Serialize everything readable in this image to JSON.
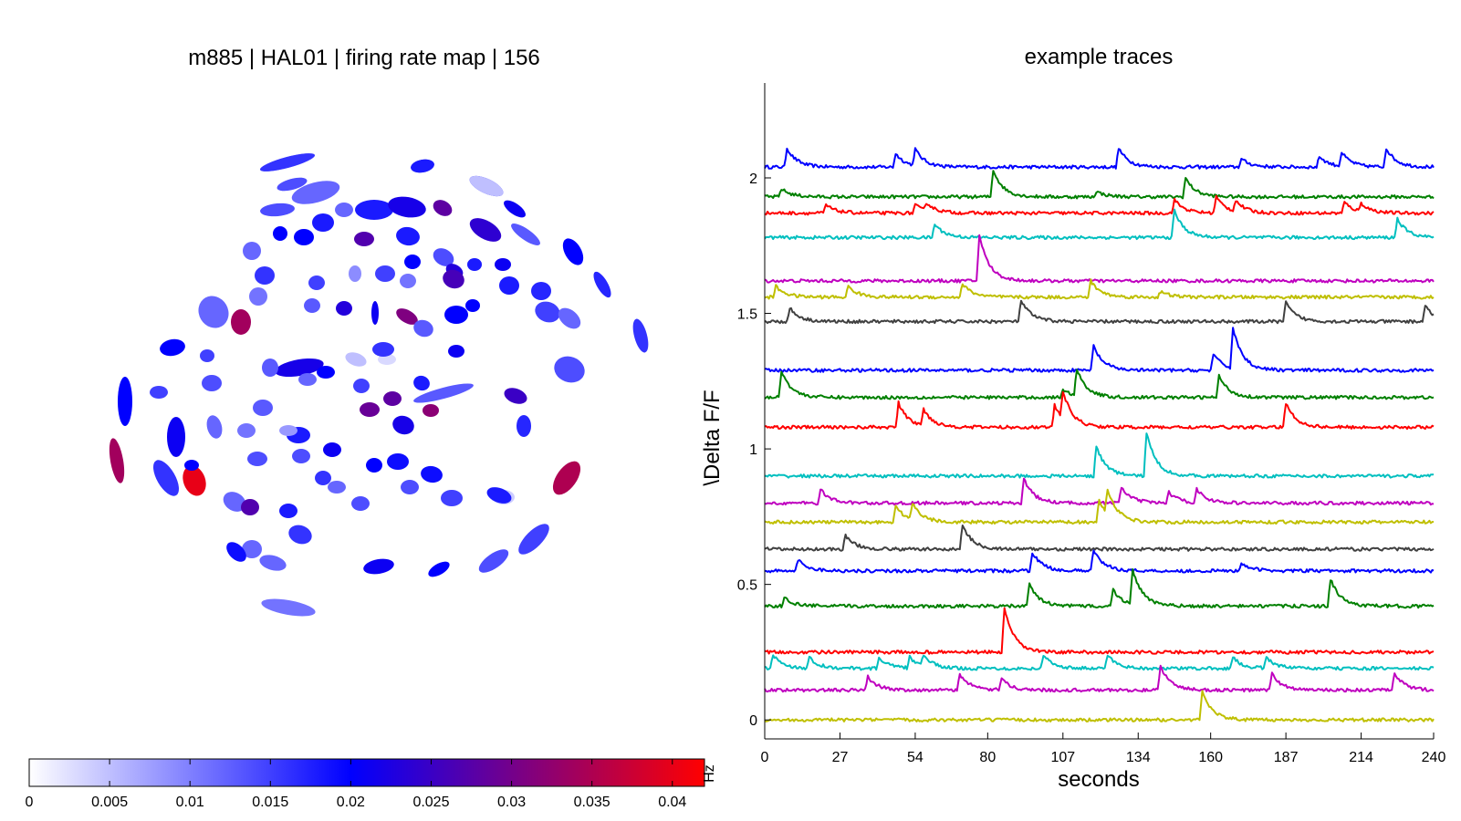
{
  "colors": {
    "colormap": [
      "#ffffff",
      "#0000ff",
      "#ff0000"
    ],
    "trace_cycle": [
      "#0000ff",
      "#008000",
      "#ff0000",
      "#00bfbf",
      "#bf00bf",
      "#bfbf00",
      "#404040"
    ]
  },
  "chart_data": [
    {
      "type": "heatmap",
      "title": "m885 | HAL01 | firing rate map | 156",
      "colorbar": {
        "label": "Hz",
        "range": [
          0,
          0.042
        ],
        "ticks": [
          "0",
          "0.005",
          "0.01",
          "0.015",
          "0.02",
          "0.025",
          "0.03",
          "0.035",
          "0.04"
        ]
      },
      "cells": [
        {
          "value": 0.009
        },
        {
          "value": 0.004
        },
        {
          "value": 0.019
        },
        {
          "value": 0.02
        },
        {
          "value": 0.012
        },
        {
          "value": 0.014
        },
        {
          "value": 0.018
        },
        {
          "value": 0.022
        },
        {
          "value": 0.012
        },
        {
          "value": 0.028
        },
        {
          "value": 0.021
        },
        {
          "value": 0.013
        },
        {
          "value": 0.018
        },
        {
          "value": 0.02
        },
        {
          "value": 0.024
        },
        {
          "value": 0.012
        },
        {
          "value": 0.02
        },
        {
          "value": 0.018
        },
        {
          "value": 0.027
        },
        {
          "value": 0.014
        },
        {
          "value": 0.023
        },
        {
          "value": 0.02
        },
        {
          "value": 0.016
        },
        {
          "value": 0.009
        },
        {
          "value": 0.015
        },
        {
          "value": 0.018
        },
        {
          "value": 0.021
        },
        {
          "value": 0.02
        },
        {
          "value": 0.011
        },
        {
          "value": 0.026
        },
        {
          "value": 0.034
        },
        {
          "value": 0.012
        },
        {
          "value": 0.015
        },
        {
          "value": 0.021
        },
        {
          "value": 0.018
        },
        {
          "value": 0.017
        },
        {
          "value": 0.011
        },
        {
          "value": 0.031
        },
        {
          "value": 0.017
        },
        {
          "value": 0.02
        },
        {
          "value": 0.015
        },
        {
          "value": 0.02
        },
        {
          "value": 0.013
        },
        {
          "value": 0.023
        },
        {
          "value": 0.012
        },
        {
          "value": 0.005
        },
        {
          "value": 0.003
        },
        {
          "value": 0.013
        },
        {
          "value": 0.016
        },
        {
          "value": 0.021
        },
        {
          "value": 0.02
        },
        {
          "value": 0.022
        },
        {
          "value": 0.016
        },
        {
          "value": 0.014
        },
        {
          "value": 0.015
        },
        {
          "value": 0.014
        },
        {
          "value": 0.013
        },
        {
          "value": 0.029
        },
        {
          "value": 0.012
        },
        {
          "value": 0.02
        },
        {
          "value": 0.034
        },
        {
          "value": 0.02
        },
        {
          "value": 0.015
        },
        {
          "value": 0.04
        },
        {
          "value": 0.013
        },
        {
          "value": 0.021
        },
        {
          "value": 0.015
        },
        {
          "value": 0.028
        },
        {
          "value": 0.018
        },
        {
          "value": 0.013
        },
        {
          "value": 0.025
        },
        {
          "value": 0.017
        },
        {
          "value": 0.032
        },
        {
          "value": 0.022
        },
        {
          "value": 0.018
        },
        {
          "value": 0.008
        },
        {
          "value": 0.012
        },
        {
          "value": 0.011
        },
        {
          "value": 0.014
        },
        {
          "value": 0.035
        },
        {
          "value": 0.016
        },
        {
          "value": 0.02
        },
        {
          "value": 0.012
        },
        {
          "value": 0.016
        },
        {
          "value": 0.004
        },
        {
          "value": 0.02
        },
        {
          "value": 0.019
        },
        {
          "value": 0.014
        },
        {
          "value": 0.012
        },
        {
          "value": 0.021
        },
        {
          "value": 0.019
        },
        {
          "value": 0.015
        },
        {
          "value": 0.014
        },
        {
          "value": 0.027
        },
        {
          "value": 0.014
        },
        {
          "value": 0.018
        },
        {
          "value": 0.016
        },
        {
          "value": 0.015
        },
        {
          "value": 0.012
        },
        {
          "value": 0.019
        },
        {
          "value": 0.012
        },
        {
          "value": 0.021
        },
        {
          "value": 0.02
        },
        {
          "value": 0.014
        },
        {
          "value": 0.011
        },
        {
          "value": 0.018
        },
        {
          "value": 0.016
        },
        {
          "value": 0.014
        },
        {
          "value": 0.018
        },
        {
          "value": 0.005
        }
      ]
    },
    {
      "type": "line",
      "title": "example traces",
      "xlabel": "seconds",
      "ylabel": "\\Delta F/F",
      "xlim": [
        0,
        240
      ],
      "ylim": [
        -0.07,
        2.35
      ],
      "xticks": [
        0,
        27,
        54,
        80,
        107,
        134,
        160,
        187,
        214,
        240
      ],
      "yticks": [
        0,
        0.5,
        1,
        1.5,
        2
      ],
      "series": [
        {
          "color": "#0000ff",
          "baseline": 2.04,
          "peaks": [
            [
              8,
              0.07
            ],
            [
              47,
              0.05
            ],
            [
              54,
              0.06
            ],
            [
              127,
              0.07
            ],
            [
              171,
              0.03
            ],
            [
              199,
              0.04
            ],
            [
              207,
              0.05
            ],
            [
              223,
              0.07
            ]
          ]
        },
        {
          "color": "#008000",
          "baseline": 1.93,
          "peaks": [
            [
              6,
              0.03
            ],
            [
              82,
              0.1
            ],
            [
              119,
              0.02
            ],
            [
              151,
              0.07
            ]
          ]
        },
        {
          "color": "#ff0000",
          "baseline": 1.87,
          "peaks": [
            [
              22,
              0.03
            ],
            [
              54,
              0.03
            ],
            [
              58,
              0.03
            ],
            [
              147,
              0.05
            ],
            [
              162,
              0.06
            ],
            [
              169,
              0.04
            ],
            [
              208,
              0.04
            ],
            [
              214,
              0.03
            ]
          ]
        },
        {
          "color": "#00bfbf",
          "baseline": 1.78,
          "peaks": [
            [
              61,
              0.05
            ],
            [
              147,
              0.1
            ],
            [
              227,
              0.07
            ]
          ]
        },
        {
          "color": "#bf00bf",
          "baseline": 1.62,
          "peaks": [
            [
              77,
              0.17
            ]
          ]
        },
        {
          "color": "#bfbf00",
          "baseline": 1.56,
          "peaks": [
            [
              4,
              0.04
            ],
            [
              30,
              0.04
            ],
            [
              71,
              0.05
            ],
            [
              117,
              0.06
            ],
            [
              142,
              0.02
            ]
          ]
        },
        {
          "color": "#404040",
          "baseline": 1.47,
          "peaks": [
            [
              9,
              0.05
            ],
            [
              92,
              0.08
            ],
            [
              187,
              0.07
            ],
            [
              237,
              0.06
            ]
          ]
        },
        {
          "color": "#0000ff",
          "baseline": 1.29,
          "peaks": [
            [
              118,
              0.09
            ],
            [
              161,
              0.06
            ],
            [
              168,
              0.15
            ]
          ]
        },
        {
          "color": "#008000",
          "baseline": 1.19,
          "peaks": [
            [
              6,
              0.1
            ],
            [
              107,
              0.03
            ],
            [
              112,
              0.1
            ],
            [
              163,
              0.08
            ]
          ]
        },
        {
          "color": "#ff0000",
          "baseline": 1.08,
          "peaks": [
            [
              48,
              0.09
            ],
            [
              57,
              0.06
            ],
            [
              104,
              0.08
            ],
            [
              107,
              0.1
            ],
            [
              187,
              0.09
            ]
          ]
        },
        {
          "color": "#00bfbf",
          "baseline": 0.9,
          "peaks": [
            [
              119,
              0.11
            ],
            [
              137,
              0.16
            ]
          ]
        },
        {
          "color": "#bf00bf",
          "baseline": 0.8,
          "peaks": [
            [
              20,
              0.05
            ],
            [
              93,
              0.09
            ],
            [
              128,
              0.06
            ],
            [
              145,
              0.04
            ],
            [
              155,
              0.05
            ]
          ]
        },
        {
          "color": "#bfbf00",
          "baseline": 0.73,
          "peaks": [
            [
              47,
              0.06
            ],
            [
              53,
              0.06
            ],
            [
              120,
              0.08
            ],
            [
              123,
              0.09
            ]
          ]
        },
        {
          "color": "#404040",
          "baseline": 0.63,
          "peaks": [
            [
              29,
              0.05
            ],
            [
              71,
              0.09
            ]
          ]
        },
        {
          "color": "#0000ff",
          "baseline": 0.55,
          "peaks": [
            [
              12,
              0.04
            ],
            [
              96,
              0.07
            ],
            [
              118,
              0.08
            ],
            [
              171,
              0.03
            ]
          ]
        },
        {
          "color": "#008000",
          "baseline": 0.42,
          "peaks": [
            [
              7,
              0.03
            ],
            [
              95,
              0.08
            ],
            [
              125,
              0.06
            ],
            [
              132,
              0.13
            ],
            [
              203,
              0.1
            ]
          ]
        },
        {
          "color": "#ff0000",
          "baseline": 0.25,
          "peaks": [
            [
              86,
              0.16
            ]
          ]
        },
        {
          "color": "#00bfbf",
          "baseline": 0.19,
          "peaks": [
            [
              3,
              0.05
            ],
            [
              16,
              0.04
            ],
            [
              41,
              0.04
            ],
            [
              52,
              0.04
            ],
            [
              57,
              0.04
            ],
            [
              100,
              0.05
            ],
            [
              123,
              0.05
            ],
            [
              168,
              0.04
            ],
            [
              180,
              0.04
            ]
          ]
        },
        {
          "color": "#bf00bf",
          "baseline": 0.11,
          "peaks": [
            [
              37,
              0.05
            ],
            [
              70,
              0.06
            ],
            [
              85,
              0.04
            ],
            [
              142,
              0.09
            ],
            [
              182,
              0.06
            ],
            [
              226,
              0.06
            ]
          ]
        },
        {
          "color": "#bfbf00",
          "baseline": 0.0,
          "peaks": [
            [
              157,
              0.11
            ]
          ]
        }
      ]
    }
  ]
}
